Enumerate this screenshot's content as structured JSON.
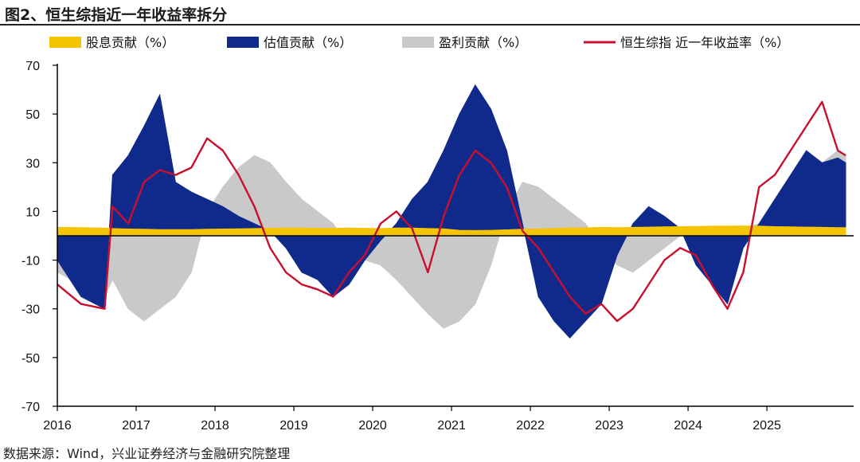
{
  "title": "图2、恒生综指近一年收益率拆分",
  "source": "数据来源：Wind，兴业证券经济与金融研究院整理",
  "colors": {
    "dividend": "#f5c400",
    "valuation": "#102a8c",
    "earnings": "#c9c9c9",
    "return": "#c8102e",
    "axis": "#000000"
  },
  "chart_data": {
    "type": "area",
    "title": "图2、恒生综指近一年收益率拆分",
    "xlabel": "",
    "ylabel": "",
    "ylim": [
      -70,
      70
    ],
    "yticks": [
      70,
      50,
      30,
      10,
      -10,
      -30,
      -50,
      -70
    ],
    "ytick_labels": [
      "70",
      "50",
      "30",
      "10",
      "-10",
      "-30",
      "-50",
      "-70"
    ],
    "xlim": [
      2016.0,
      2026.1
    ],
    "xticks": [
      2016,
      2017,
      2018,
      2019,
      2020,
      2021,
      2022,
      2023,
      2024,
      2025
    ],
    "xtick_labels": [
      "2016",
      "2017",
      "2018",
      "2019",
      "2020",
      "2021",
      "2022",
      "2023",
      "2024",
      "2025"
    ],
    "legend_position": "top",
    "legend": [
      "股息贡献（%）",
      "估值贡献（%）",
      "盈利贡献（%）",
      "恒生综指 近一年收益率（%）"
    ],
    "x": [
      2016.0,
      2016.3,
      2016.6,
      2016.7,
      2016.9,
      2017.1,
      2017.3,
      2017.5,
      2017.7,
      2017.9,
      2018.1,
      2018.3,
      2018.5,
      2018.7,
      2018.9,
      2019.1,
      2019.3,
      2019.5,
      2019.7,
      2019.9,
      2020.1,
      2020.3,
      2020.5,
      2020.7,
      2020.9,
      2021.1,
      2021.3,
      2021.5,
      2021.7,
      2021.9,
      2022.1,
      2022.3,
      2022.5,
      2022.7,
      2022.9,
      2023.1,
      2023.3,
      2023.5,
      2023.7,
      2023.9,
      2024.1,
      2024.3,
      2024.5,
      2024.7,
      2024.9,
      2025.1,
      2025.3,
      2025.5,
      2025.7,
      2025.9,
      2026.0
    ],
    "series": [
      {
        "name": "股息贡献（%）",
        "key": "dividend",
        "type": "area",
        "values": [
          3.5,
          3.4,
          3.2,
          3.0,
          2.8,
          2.7,
          2.6,
          2.6,
          2.6,
          2.7,
          2.8,
          2.9,
          3.0,
          3.1,
          3.2,
          3.2,
          3.1,
          3.1,
          3.2,
          3.1,
          3.0,
          3.2,
          3.2,
          3.0,
          2.9,
          2.3,
          2.2,
          2.3,
          2.5,
          2.7,
          2.8,
          3.0,
          3.2,
          3.3,
          3.5,
          3.4,
          3.5,
          3.6,
          3.7,
          3.8,
          3.9,
          4.0,
          4.0,
          4.1,
          4.0,
          3.8,
          3.7,
          3.6,
          3.5,
          3.4,
          3.4
        ]
      },
      {
        "name": "估值贡献（%）",
        "key": "valuation",
        "type": "area",
        "values": [
          -10,
          -25,
          -30,
          25,
          33,
          45,
          58,
          22,
          18,
          15,
          12,
          8,
          5,
          2,
          -5,
          -15,
          -18,
          -25,
          -20,
          -10,
          -2,
          5,
          15,
          22,
          35,
          50,
          62,
          52,
          35,
          5,
          -25,
          -35,
          -42,
          -35,
          -28,
          -8,
          5,
          12,
          8,
          3,
          -12,
          -20,
          -28,
          -5,
          5,
          15,
          25,
          35,
          30,
          32,
          30
        ]
      },
      {
        "name": "盈利贡献（%）",
        "key": "earnings",
        "type": "area",
        "values": [
          -15,
          -20,
          -25,
          -18,
          -30,
          -35,
          -30,
          -25,
          -15,
          10,
          20,
          28,
          33,
          30,
          22,
          15,
          10,
          5,
          -5,
          -10,
          -12,
          -18,
          -25,
          -32,
          -38,
          -35,
          -28,
          -12,
          10,
          22,
          20,
          15,
          10,
          5,
          -5,
          -12,
          -15,
          -10,
          -5,
          0,
          2,
          1,
          -2,
          3,
          5,
          10,
          18,
          25,
          30,
          35,
          33
        ]
      },
      {
        "name": "恒生综指 近一年收益率（%）",
        "key": "return",
        "type": "line",
        "values": [
          -20,
          -28,
          -30,
          12,
          5,
          22,
          27,
          25,
          28,
          40,
          35,
          25,
          12,
          -5,
          -15,
          -20,
          -22,
          -25,
          -15,
          -8,
          5,
          10,
          3,
          -15,
          8,
          25,
          35,
          30,
          20,
          2,
          -5,
          -15,
          -25,
          -32,
          -28,
          -35,
          -30,
          -20,
          -10,
          -5,
          -8,
          -20,
          -30,
          -15,
          20,
          25,
          35,
          45,
          55,
          35,
          33
        ]
      }
    ]
  }
}
